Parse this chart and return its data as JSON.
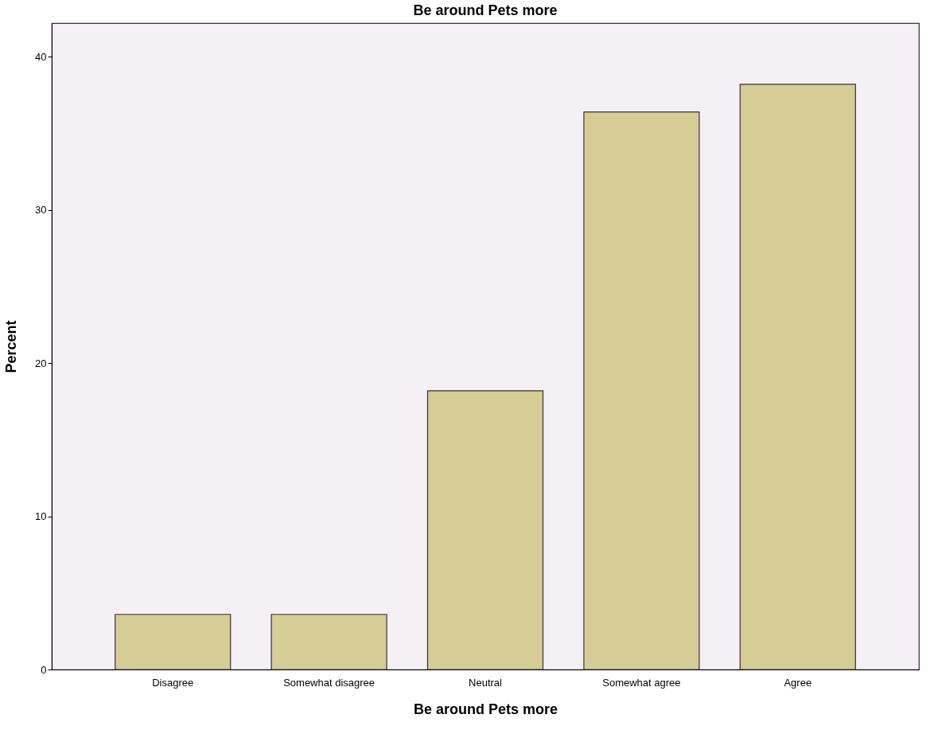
{
  "chart_data": {
    "type": "bar",
    "title": "Be around Pets more",
    "xlabel": "Be around Pets more",
    "ylabel": "Percent",
    "categories": [
      "Disagree",
      "Somewhat disagree",
      "Neutral",
      "Somewhat agree",
      "Agree"
    ],
    "values": [
      3.6,
      3.6,
      18.2,
      36.4,
      38.2
    ],
    "color": "#d6cd96",
    "ylim": [
      0,
      42.2
    ],
    "yticks": [
      0,
      10,
      20,
      30,
      40
    ],
    "grid": false
  }
}
